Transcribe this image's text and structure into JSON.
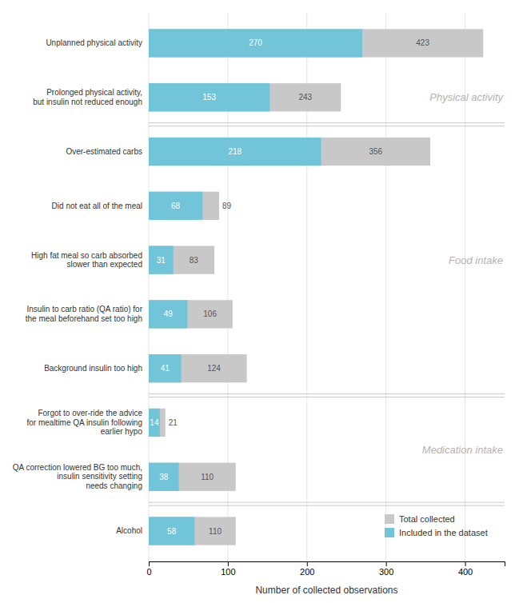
{
  "chart_data": {
    "type": "bar",
    "orientation": "horizontal",
    "categories": [
      "Unplanned physical activity",
      "Prolonged physical activity,\nbut insulin not reduced enough",
      "Over-estimated carbs",
      "Did not eat all of the meal",
      "High fat meal so carb absorbed\nslower than expected",
      "Insulin to carb ratio (QA ratio) for\nthe meal beforehand set too high",
      "Background insulin too high",
      "Forgot to over-ride the advice\nfor mealtime QA insulin following\nearlier hypo",
      "QA correction lowered BG too much,\ninsulin sensitivity setting\nneeds changing",
      "Alcohol"
    ],
    "series": [
      {
        "name": "Total collected",
        "color": "#c8c8c8",
        "values": [
          423,
          243,
          356,
          89,
          83,
          106,
          124,
          21,
          110,
          110
        ]
      },
      {
        "name": "Included in the dataset",
        "color": "#72c4d8",
        "values": [
          270,
          153,
          218,
          68,
          31,
          49,
          41,
          14,
          38,
          58
        ]
      }
    ],
    "xlabel": "Number of collected observations",
    "xlim": [
      0,
      450
    ],
    "xticks": [
      0,
      100,
      200,
      300,
      400
    ],
    "grid": true,
    "legend": "lower right",
    "data_labels": true,
    "annotations": [
      "Physical activity",
      "Food intake",
      "Medication intake"
    ]
  }
}
